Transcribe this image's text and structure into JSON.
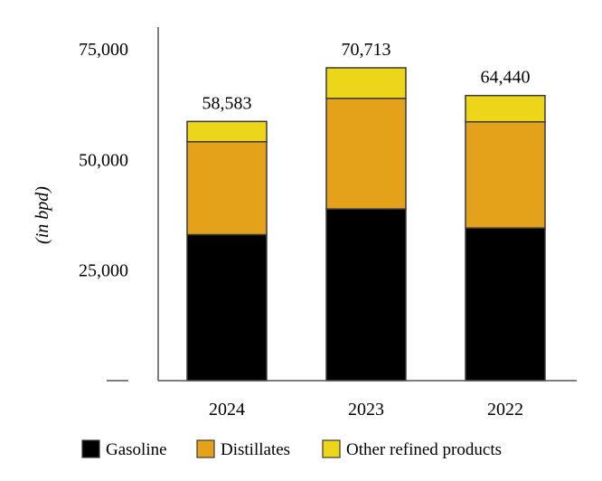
{
  "chart_data": {
    "type": "bar",
    "stacked": true,
    "categories": [
      "2024",
      "2023",
      "2022"
    ],
    "series": [
      {
        "name": "Gasoline",
        "color": "#000000",
        "values": [
          33000,
          38800,
          34500
        ]
      },
      {
        "name": "Distillates",
        "color": "#E3A21A",
        "values": [
          21000,
          25000,
          24000
        ]
      },
      {
        "name": "Other refined products",
        "color": "#EDD51A",
        "values": [
          4583,
          6913,
          5940
        ]
      }
    ],
    "totals": [
      "58,583",
      "70,713",
      "64,440"
    ],
    "totals_values": [
      58583,
      70713,
      64440
    ],
    "title": "",
    "xlabel": "",
    "ylabel": "(in bpd)",
    "yticks": [
      {
        "value": 25000,
        "label": "25,000"
      },
      {
        "value": 50000,
        "label": "50,000"
      },
      {
        "value": 75000,
        "label": "75,000"
      }
    ],
    "ylim": [
      0,
      80000
    ],
    "grid": false,
    "legend": "bottom"
  }
}
